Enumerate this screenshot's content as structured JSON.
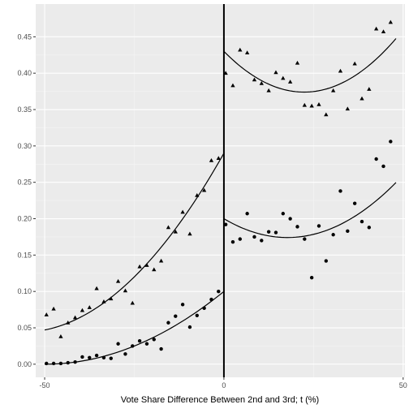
{
  "chart_data": {
    "type": "scatter",
    "xlabel": "Vote Share Difference Between 2nd and 3rd; t (%)",
    "ylabel": "",
    "xlim": [
      -52.5,
      50.5
    ],
    "ylim": [
      -0.018,
      0.495
    ],
    "x_ticks": [
      {
        "value": -50,
        "label": "-50"
      },
      {
        "value": 0,
        "label": "0"
      },
      {
        "value": 50,
        "label": "50"
      }
    ],
    "y_ticks": [
      {
        "value": 0.0,
        "label": "0.00"
      },
      {
        "value": 0.05,
        "label": "0.05"
      },
      {
        "value": 0.1,
        "label": "0.10"
      },
      {
        "value": 0.15,
        "label": "0.15"
      },
      {
        "value": 0.2,
        "label": "0.20"
      },
      {
        "value": 0.25,
        "label": "0.25"
      },
      {
        "value": 0.3,
        "label": "0.30"
      },
      {
        "value": 0.35,
        "label": "0.35"
      },
      {
        "value": 0.4,
        "label": "0.40"
      },
      {
        "value": 0.45,
        "label": "0.45"
      }
    ],
    "grid": true,
    "cutoff_x": 0,
    "colors": {
      "panel": "#ebebeb",
      "grid_major": "#ffffff",
      "grid_minor": "#f5f5f5",
      "marks": "#000000"
    },
    "series": [
      {
        "marker": "triangle",
        "points": [
          {
            "x": -49.5,
            "y": 0.068
          },
          {
            "x": -47.5,
            "y": 0.076
          },
          {
            "x": -45.5,
            "y": 0.038
          },
          {
            "x": -43.5,
            "y": 0.057
          },
          {
            "x": -41.5,
            "y": 0.064
          },
          {
            "x": -39.5,
            "y": 0.074
          },
          {
            "x": -37.5,
            "y": 0.078
          },
          {
            "x": -35.5,
            "y": 0.104
          },
          {
            "x": -33.5,
            "y": 0.086
          },
          {
            "x": -31.5,
            "y": 0.09
          },
          {
            "x": -29.5,
            "y": 0.114
          },
          {
            "x": -27.5,
            "y": 0.101
          },
          {
            "x": -25.5,
            "y": 0.084
          },
          {
            "x": -23.5,
            "y": 0.134
          },
          {
            "x": -21.5,
            "y": 0.136
          },
          {
            "x": -19.5,
            "y": 0.13
          },
          {
            "x": -17.5,
            "y": 0.142
          },
          {
            "x": -15.5,
            "y": 0.188
          },
          {
            "x": -13.5,
            "y": 0.182
          },
          {
            "x": -11.5,
            "y": 0.209
          },
          {
            "x": -9.5,
            "y": 0.179
          },
          {
            "x": -7.5,
            "y": 0.232
          },
          {
            "x": -5.5,
            "y": 0.239
          },
          {
            "x": -3.5,
            "y": 0.28
          },
          {
            "x": -1.5,
            "y": 0.283
          },
          {
            "x": 0.5,
            "y": 0.4
          },
          {
            "x": 2.5,
            "y": 0.383
          },
          {
            "x": 4.5,
            "y": 0.432
          },
          {
            "x": 6.5,
            "y": 0.428
          },
          {
            "x": 8.5,
            "y": 0.391
          },
          {
            "x": 10.5,
            "y": 0.386
          },
          {
            "x": 12.5,
            "y": 0.376
          },
          {
            "x": 14.5,
            "y": 0.401
          },
          {
            "x": 16.5,
            "y": 0.393
          },
          {
            "x": 18.5,
            "y": 0.388
          },
          {
            "x": 20.5,
            "y": 0.414
          },
          {
            "x": 22.5,
            "y": 0.356
          },
          {
            "x": 24.5,
            "y": 0.355
          },
          {
            "x": 26.5,
            "y": 0.357
          },
          {
            "x": 28.5,
            "y": 0.343
          },
          {
            "x": 30.5,
            "y": 0.376
          },
          {
            "x": 32.5,
            "y": 0.403
          },
          {
            "x": 34.5,
            "y": 0.351
          },
          {
            "x": 36.5,
            "y": 0.413
          },
          {
            "x": 38.5,
            "y": 0.365
          },
          {
            "x": 40.5,
            "y": 0.378
          },
          {
            "x": 42.5,
            "y": 0.461
          },
          {
            "x": 44.5,
            "y": 0.457
          },
          {
            "x": 46.5,
            "y": 0.47
          }
        ],
        "fit_left": {
          "x_from": -50,
          "x_to": 0,
          "coef": [
            0.29,
            0.00874,
            7.76e-05
          ]
        },
        "fit_right": {
          "x_from": 0,
          "x_to": 48,
          "coef": [
            0.43,
            -0.00501,
            0.000112
          ]
        }
      },
      {
        "marker": "circle",
        "points": [
          {
            "x": -49.5,
            "y": 0.001
          },
          {
            "x": -47.5,
            "y": 0.001
          },
          {
            "x": -45.5,
            "y": 0.001
          },
          {
            "x": -43.5,
            "y": 0.002
          },
          {
            "x": -41.5,
            "y": 0.003
          },
          {
            "x": -39.5,
            "y": 0.01
          },
          {
            "x": -37.5,
            "y": 0.009
          },
          {
            "x": -35.5,
            "y": 0.012
          },
          {
            "x": -33.5,
            "y": 0.009
          },
          {
            "x": -31.5,
            "y": 0.008
          },
          {
            "x": -29.5,
            "y": 0.028
          },
          {
            "x": -27.5,
            "y": 0.014
          },
          {
            "x": -25.5,
            "y": 0.025
          },
          {
            "x": -23.5,
            "y": 0.032
          },
          {
            "x": -21.5,
            "y": 0.028
          },
          {
            "x": -19.5,
            "y": 0.034
          },
          {
            "x": -17.5,
            "y": 0.021
          },
          {
            "x": -15.5,
            "y": 0.057
          },
          {
            "x": -13.5,
            "y": 0.066
          },
          {
            "x": -11.5,
            "y": 0.082
          },
          {
            "x": -9.5,
            "y": 0.051
          },
          {
            "x": -7.5,
            "y": 0.067
          },
          {
            "x": -5.5,
            "y": 0.077
          },
          {
            "x": -3.5,
            "y": 0.089
          },
          {
            "x": -1.5,
            "y": 0.1
          },
          {
            "x": 0.5,
            "y": 0.192
          },
          {
            "x": 2.5,
            "y": 0.168
          },
          {
            "x": 4.5,
            "y": 0.172
          },
          {
            "x": 6.5,
            "y": 0.207
          },
          {
            "x": 8.5,
            "y": 0.175
          },
          {
            "x": 10.5,
            "y": 0.17
          },
          {
            "x": 12.5,
            "y": 0.182
          },
          {
            "x": 14.5,
            "y": 0.181
          },
          {
            "x": 16.5,
            "y": 0.207
          },
          {
            "x": 18.5,
            "y": 0.2
          },
          {
            "x": 20.5,
            "y": 0.189
          },
          {
            "x": 22.5,
            "y": 0.172
          },
          {
            "x": 24.5,
            "y": 0.119
          },
          {
            "x": 26.5,
            "y": 0.19
          },
          {
            "x": 28.5,
            "y": 0.142
          },
          {
            "x": 30.5,
            "y": 0.178
          },
          {
            "x": 32.5,
            "y": 0.238
          },
          {
            "x": 34.5,
            "y": 0.183
          },
          {
            "x": 36.5,
            "y": 0.221
          },
          {
            "x": 38.5,
            "y": 0.196
          },
          {
            "x": 40.5,
            "y": 0.188
          },
          {
            "x": 42.5,
            "y": 0.282
          },
          {
            "x": 44.5,
            "y": 0.272
          },
          {
            "x": 46.5,
            "y": 0.306
          }
        ],
        "fit_left": {
          "x_from": -50,
          "x_to": 0,
          "coef": [
            0.1,
            0.004,
            4e-05
          ]
        },
        "fit_right": {
          "x_from": 0,
          "x_to": 48,
          "coef": [
            0.2,
            -0.00292,
            8.24e-05
          ]
        }
      }
    ]
  }
}
